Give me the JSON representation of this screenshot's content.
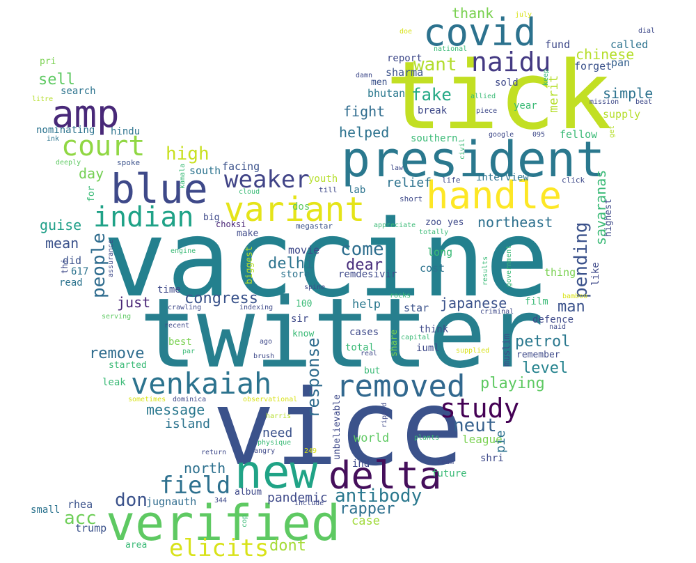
{
  "words": [
    {
      "text": "vaccine",
      "color": "#23808e",
      "vertical": false
    },
    {
      "text": "twitter",
      "color": "#277f8e",
      "vertical": false
    },
    {
      "text": "vice",
      "color": "#3b528b",
      "vertical": false
    },
    {
      "text": "tick",
      "color": "#c2df23",
      "vertical": false
    },
    {
      "text": "president",
      "color": "#2a788e",
      "vertical": false
    },
    {
      "text": "new",
      "color": "#20a386",
      "vertical": false
    },
    {
      "text": "verified",
      "color": "#5ec962",
      "vertical": false
    },
    {
      "text": "delta",
      "color": "#450f5b",
      "vertical": false
    },
    {
      "text": "handle",
      "color": "#fde725",
      "vertical": false
    },
    {
      "text": "variant",
      "color": "#e5e419",
      "vertical": false
    },
    {
      "text": "blue",
      "color": "#3e4989",
      "vertical": false
    },
    {
      "text": "covid",
      "color": "#2c728e",
      "vertical": false
    },
    {
      "text": "amp",
      "color": "#482878",
      "vertical": false
    },
    {
      "text": "venkaiah",
      "color": "#2c738e",
      "vertical": false
    },
    {
      "text": "removed",
      "color": "#31688e",
      "vertical": false
    },
    {
      "text": "court",
      "color": "#90d743",
      "vertical": false
    },
    {
      "text": "indian",
      "color": "#1fa287",
      "vertical": false
    },
    {
      "text": "field",
      "color": "#2d708e",
      "vertical": false
    },
    {
      "text": "study",
      "color": "#440154",
      "vertical": false
    },
    {
      "text": "naidu",
      "color": "#443a83",
      "vertical": false
    },
    {
      "text": "elicits",
      "color": "#d8e219",
      "vertical": false
    },
    {
      "text": "weaker",
      "color": "#414487",
      "vertical": false
    },
    {
      "text": "antibody",
      "color": "#2a788e",
      "vertical": false
    },
    {
      "text": "people",
      "color": "#2f6c8e",
      "vertical": true
    },
    {
      "text": "pending",
      "color": "#3b528b",
      "vertical": true
    },
    {
      "text": "response",
      "color": "#2f6c8e",
      "vertical": true
    },
    {
      "text": "neut",
      "color": "#35608d",
      "vertical": false
    },
    {
      "text": "acc",
      "color": "#6ece58",
      "vertical": false
    },
    {
      "text": "high",
      "color": "#c8e020",
      "vertical": false
    },
    {
      "text": "don",
      "color": "#3b528b",
      "vertical": false
    },
    {
      "text": "come",
      "color": "#2e6e8e",
      "vertical": false
    },
    {
      "text": "want",
      "color": "#b2dd2d",
      "vertical": false
    },
    {
      "text": "fake",
      "color": "#22a884",
      "vertical": false
    },
    {
      "text": "congress",
      "color": "#3a538b",
      "vertical": false
    },
    {
      "text": "remove",
      "color": "#2f6c8e",
      "vertical": false
    },
    {
      "text": "message",
      "color": "#2a788e",
      "vertical": false
    },
    {
      "text": "japanese",
      "color": "#3b528b",
      "vertical": false
    },
    {
      "text": "playing",
      "color": "#5ec962",
      "vertical": false
    },
    {
      "text": "petrol",
      "color": "#2a788e",
      "vertical": false
    },
    {
      "text": "rapper",
      "color": "#2d708e",
      "vertical": false
    },
    {
      "text": "dont",
      "color": "#a5db36",
      "vertical": false
    },
    {
      "text": "delhi",
      "color": "#2c738e",
      "vertical": false
    },
    {
      "text": "dear",
      "color": "#472d7b",
      "vertical": false
    },
    {
      "text": "just",
      "color": "#482475",
      "vertical": false
    },
    {
      "text": "man",
      "color": "#3b528b",
      "vertical": false
    },
    {
      "text": "level",
      "color": "#25838e",
      "vertical": false
    },
    {
      "text": "north",
      "color": "#2d708e",
      "vertical": false
    },
    {
      "text": "chinese",
      "color": "#b5de2b",
      "vertical": false
    },
    {
      "text": "simple",
      "color": "#2c728e",
      "vertical": false
    },
    {
      "text": "sell",
      "color": "#5ec962",
      "vertical": false
    },
    {
      "text": "thank",
      "color": "#7ad151",
      "vertical": false
    },
    {
      "text": "helped",
      "color": "#2c728e",
      "vertical": false
    },
    {
      "text": "fight",
      "color": "#2f6c8e",
      "vertical": false
    },
    {
      "text": "relief",
      "color": "#2c728e",
      "vertical": false
    },
    {
      "text": "northeast",
      "color": "#2d708e",
      "vertical": false
    },
    {
      "text": "guise",
      "color": "#1f9f88",
      "vertical": false
    },
    {
      "text": "mean",
      "color": "#3b528b",
      "vertical": false
    },
    {
      "text": "island",
      "color": "#2c738e",
      "vertical": false
    },
    {
      "text": "pandemic",
      "color": "#3e4989",
      "vertical": false
    },
    {
      "text": "jugnauth",
      "color": "#2f6c8e",
      "vertical": false
    },
    {
      "text": "day",
      "color": "#75d054",
      "vertical": false
    },
    {
      "text": "need",
      "color": "#3b528b",
      "vertical": false
    },
    {
      "text": "world",
      "color": "#5ec962",
      "vertical": false
    },
    {
      "text": "help",
      "color": "#2a788e",
      "vertical": false
    },
    {
      "text": "case",
      "color": "#a0da39",
      "vertical": false
    },
    {
      "text": "league",
      "color": "#7ad151",
      "vertical": false
    },
    {
      "text": "merit",
      "color": "#b5de2b",
      "vertical": true
    },
    {
      "text": "savaranas",
      "color": "#3aba76",
      "vertical": true
    },
    {
      "text": "pie",
      "color": "#2c728e",
      "vertical": true
    },
    {
      "text": "facing",
      "color": "#3b528b",
      "vertical": false
    },
    {
      "text": "south",
      "color": "#2c738e",
      "vertical": false
    },
    {
      "text": "fund",
      "color": "#3e4989",
      "vertical": false
    },
    {
      "text": "called",
      "color": "#2c728e",
      "vertical": false
    },
    {
      "text": "forget",
      "color": "#3b528b",
      "vertical": false
    },
    {
      "text": "pan",
      "color": "#35608d",
      "vertical": false
    },
    {
      "text": "supply",
      "color": "#b5de2b",
      "vertical": false
    },
    {
      "text": "fellow",
      "color": "#3aba76",
      "vertical": false
    },
    {
      "text": "report",
      "color": "#3e4989",
      "vertical": false
    },
    {
      "text": "sharma",
      "color": "#3b528b",
      "vertical": false
    },
    {
      "text": "sold",
      "color": "#3e4989",
      "vertical": false
    },
    {
      "text": "bhutan",
      "color": "#2a788e",
      "vertical": false
    },
    {
      "text": "break",
      "color": "#3e4989",
      "vertical": false
    },
    {
      "text": "men",
      "color": "#3b528b",
      "vertical": false
    },
    {
      "text": "search",
      "color": "#2c738e",
      "vertical": false
    },
    {
      "text": "nominating",
      "color": "#2c738e",
      "vertical": false
    },
    {
      "text": "hindu",
      "color": "#2c738e",
      "vertical": false
    },
    {
      "text": "interview",
      "color": "#2c738e",
      "vertical": false
    },
    {
      "text": "southern",
      "color": "#3aba76",
      "vertical": false
    },
    {
      "text": "year",
      "color": "#3aba76",
      "vertical": false
    },
    {
      "text": "lab",
      "color": "#2c738e",
      "vertical": false
    },
    {
      "text": "dos",
      "color": "#5ec962",
      "vertical": false
    },
    {
      "text": "youth",
      "color": "#b5de2b",
      "vertical": false
    },
    {
      "text": "zoo",
      "color": "#3e4989",
      "vertical": false
    },
    {
      "text": "yes",
      "color": "#3e4989",
      "vertical": false
    },
    {
      "text": "big",
      "color": "#3e4989",
      "vertical": false
    },
    {
      "text": "make",
      "color": "#3e4989",
      "vertical": false
    },
    {
      "text": "choksi",
      "color": "#482475",
      "vertical": false
    },
    {
      "text": "megastar",
      "color": "#3b528b",
      "vertical": false
    },
    {
      "text": "movie",
      "color": "#3e4989",
      "vertical": false
    },
    {
      "text": "store",
      "color": "#2c738e",
      "vertical": false
    },
    {
      "text": "remdesivir",
      "color": "#3e4989",
      "vertical": false
    },
    {
      "text": "long",
      "color": "#3aba76",
      "vertical": false
    },
    {
      "text": "cost",
      "color": "#2c738e",
      "vertical": false
    },
    {
      "text": "thing",
      "color": "#7ad151",
      "vertical": false
    },
    {
      "text": "like",
      "color": "#3e4989",
      "vertical": true
    },
    {
      "text": "highest",
      "color": "#3e4989",
      "vertical": true
    },
    {
      "text": "did",
      "color": "#3b528b",
      "vertical": false
    },
    {
      "text": "617",
      "color": "#2c738e",
      "vertical": false
    },
    {
      "text": "read",
      "color": "#2c738e",
      "vertical": false
    },
    {
      "text": "time",
      "color": "#3e4989",
      "vertical": false
    },
    {
      "text": "100",
      "color": "#3aba76",
      "vertical": false
    },
    {
      "text": "sir",
      "color": "#3e4989",
      "vertical": false
    },
    {
      "text": "know",
      "color": "#3aba76",
      "vertical": false
    },
    {
      "text": "star",
      "color": "#3b528b",
      "vertical": false
    },
    {
      "text": "think",
      "color": "#3e4989",
      "vertical": false
    },
    {
      "text": "film",
      "color": "#3aba76",
      "vertical": false
    },
    {
      "text": "defence",
      "color": "#3e4989",
      "vertical": false
    },
    {
      "text": "cases",
      "color": "#3e4989",
      "vertical": false
    },
    {
      "text": "total",
      "color": "#3aba76",
      "vertical": false
    },
    {
      "text": "iuml",
      "color": "#3e4989",
      "vertical": false
    },
    {
      "text": "remember",
      "color": "#3e4989",
      "vertical": false
    },
    {
      "text": "best",
      "color": "#7ad151",
      "vertical": false
    },
    {
      "text": "started",
      "color": "#3aba76",
      "vertical": false
    },
    {
      "text": "leak",
      "color": "#3aba76",
      "vertical": false
    },
    {
      "text": "ind",
      "color": "#3e4989",
      "vertical": false
    },
    {
      "text": "album",
      "color": "#3e4989",
      "vertical": false
    },
    {
      "text": "rhea",
      "color": "#3b528b",
      "vertical": false
    },
    {
      "text": "trump",
      "color": "#3b528b",
      "vertical": false
    },
    {
      "text": "small",
      "color": "#2c738e",
      "vertical": false
    },
    {
      "text": "area",
      "color": "#3aba76",
      "vertical": false
    },
    {
      "text": "shri",
      "color": "#3e4989",
      "vertical": false
    },
    {
      "text": "future",
      "color": "#3aba76",
      "vertical": false
    },
    {
      "text": "but",
      "color": "#3aba76",
      "vertical": false
    },
    {
      "text": "muslim",
      "color": "#3e4989",
      "vertical": true
    },
    {
      "text": "share",
      "color": "#7ad151",
      "vertical": true
    },
    {
      "text": "unbelievable",
      "color": "#3e4989",
      "vertical": true
    },
    {
      "text": "biggest",
      "color": "#b5de2b",
      "vertical": true
    },
    {
      "text": "for",
      "color": "#3aba76",
      "vertical": true
    },
    {
      "text": "thi",
      "color": "#3e4989",
      "vertical": true
    },
    {
      "text": "pri",
      "color": "#7ad151",
      "vertical": false
    },
    {
      "text": "litre",
      "color": "#b5de2b",
      "vertical": false
    },
    {
      "text": "ink",
      "color": "#2c738e",
      "vertical": false
    },
    {
      "text": "deeply",
      "color": "#5ec962",
      "vertical": false
    },
    {
      "text": "spoke",
      "color": "#3b528b",
      "vertical": false
    },
    {
      "text": "law",
      "color": "#3e4989",
      "vertical": false
    },
    {
      "text": "life",
      "color": "#3e4989",
      "vertical": false
    },
    {
      "text": "click",
      "color": "#3e4989",
      "vertical": false
    },
    {
      "text": "till",
      "color": "#3e4989",
      "vertical": false
    },
    {
      "text": "short",
      "color": "#3e4989",
      "vertical": false
    },
    {
      "text": "cloud",
      "color": "#3aba76",
      "vertical": false
    },
    {
      "text": "appreciate",
      "color": "#3aba76",
      "vertical": false
    },
    {
      "text": "totally",
      "color": "#3aba76",
      "vertical": false
    },
    {
      "text": "engine",
      "color": "#3aba76",
      "vertical": false
    },
    {
      "text": "crawling",
      "color": "#3e4989",
      "vertical": false
    },
    {
      "text": "indexing",
      "color": "#3e4989",
      "vertical": false
    },
    {
      "text": "spine",
      "color": "#3e4989",
      "vertical": false
    },
    {
      "text": "rocks",
      "color": "#3aba76",
      "vertical": false
    },
    {
      "text": "criminal",
      "color": "#3e4989",
      "vertical": false
    },
    {
      "text": "serving",
      "color": "#5ec962",
      "vertical": false
    },
    {
      "text": "recent",
      "color": "#3e4989",
      "vertical": false
    },
    {
      "text": "par",
      "color": "#3aba76",
      "vertical": false
    },
    {
      "text": "ago",
      "color": "#3e4989",
      "vertical": false
    },
    {
      "text": "brush",
      "color": "#3e4989",
      "vertical": false
    },
    {
      "text": "real",
      "color": "#3e4989",
      "vertical": false
    },
    {
      "text": "capital",
      "color": "#3aba76",
      "vertical": false
    },
    {
      "text": "supplied",
      "color": "#d8e219",
      "vertical": false
    },
    {
      "text": "sometimes",
      "color": "#d8e219",
      "vertical": false
    },
    {
      "text": "dominica",
      "color": "#3e4989",
      "vertical": false
    },
    {
      "text": "observational",
      "color": "#d8e219",
      "vertical": false
    },
    {
      "text": "harris",
      "color": "#b5de2b",
      "vertical": false
    },
    {
      "text": "physique",
      "color": "#3aba76",
      "vertical": false
    },
    {
      "text": "angry",
      "color": "#3e4989",
      "vertical": false
    },
    {
      "text": "return",
      "color": "#3e4989",
      "vertical": false
    },
    {
      "text": "249",
      "color": "#d8e219",
      "vertical": false
    },
    {
      "text": "plants",
      "color": "#3aba76",
      "vertical": false
    },
    {
      "text": "team",
      "color": "#3e4989",
      "vertical": false
    },
    {
      "text": "include",
      "color": "#3e4989",
      "vertical": false
    },
    {
      "text": "344",
      "color": "#3e4989",
      "vertical": false
    },
    {
      "text": "cop",
      "color": "#3aba76",
      "vertical": true
    },
    {
      "text": "ripped",
      "color": "#3e4989",
      "vertical": true
    },
    {
      "text": "kamala",
      "color": "#3aba76",
      "vertical": true
    },
    {
      "text": "assurance",
      "color": "#3e4989",
      "vertical": true
    },
    {
      "text": "government",
      "color": "#3aba76",
      "vertical": true
    },
    {
      "text": "results",
      "color": "#3aba76",
      "vertical": true
    },
    {
      "text": "civil",
      "color": "#3aba76",
      "vertical": true
    },
    {
      "text": "keep",
      "color": "#3aba76",
      "vertical": true
    },
    {
      "text": "get",
      "color": "#b5de2b",
      "vertical": true
    },
    {
      "text": "damn",
      "color": "#3e4989",
      "vertical": false
    },
    {
      "text": "allied",
      "color": "#3aba76",
      "vertical": false
    },
    {
      "text": "piece",
      "color": "#3e4989",
      "vertical": false
    },
    {
      "text": "google",
      "color": "#3e4989",
      "vertical": false
    },
    {
      "text": "095",
      "color": "#3e4989",
      "vertical": false
    },
    {
      "text": "mission",
      "color": "#3e4989",
      "vertical": false
    },
    {
      "text": "beat",
      "color": "#3e4989",
      "vertical": false
    },
    {
      "text": "dial",
      "color": "#3e4989",
      "vertical": false
    },
    {
      "text": "national",
      "color": "#3aba76",
      "vertical": false
    },
    {
      "text": "doe",
      "color": "#d8e219",
      "vertical": false
    },
    {
      "text": "july",
      "color": "#d8e219",
      "vertical": false
    },
    {
      "text": "bamboo",
      "color": "#d8e219",
      "vertical": false
    },
    {
      "text": "naid",
      "color": "#3e4989",
      "vertical": false
    }
  ]
}
